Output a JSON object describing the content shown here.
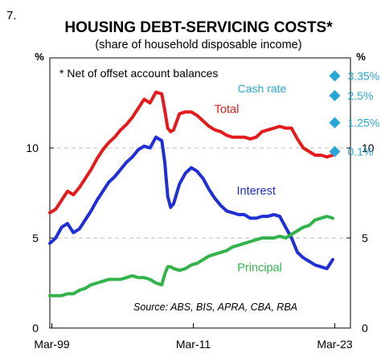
{
  "figure_number": "7.",
  "colors": {
    "total": "#e41a1c",
    "interest": "#1f2ed6",
    "principal": "#33b44a",
    "cash_rate": "#29a6d8",
    "gridline": "#bdbdbd"
  },
  "chart_data": {
    "type": "line",
    "title": "HOUSING DEBT-SERVICING COSTS*",
    "subtitle": "(share of household disposable income)",
    "ylabel_left": "%",
    "ylabel_right": "%",
    "ylim": [
      0,
      15
    ],
    "yticks": [
      0,
      5,
      10
    ],
    "gridlines": [
      5,
      10
    ],
    "xlim": [
      1999.0,
      2024.5
    ],
    "xticks": [
      {
        "x": 1999.17,
        "label": "Mar-99"
      },
      {
        "x": 2011.17,
        "label": "Mar-11"
      },
      {
        "x": 2023.17,
        "label": "Mar-23"
      }
    ],
    "note": "*   Net of offset account balances",
    "source": "Source: ABS, BIS, APRA, CBA, RBA",
    "series": [
      {
        "name": "Total",
        "key": "total",
        "x": [
          1999.0,
          1999.5,
          2000.0,
          2000.5,
          2001.0,
          2001.5,
          2002.0,
          2002.5,
          2003.0,
          2003.5,
          2004.0,
          2004.5,
          2005.0,
          2005.5,
          2006.0,
          2006.5,
          2007.0,
          2007.5,
          2008.0,
          2008.5,
          2008.75,
          2009.0,
          2009.25,
          2009.5,
          2010.0,
          2010.5,
          2011.0,
          2011.5,
          2012.0,
          2012.5,
          2013.0,
          2013.5,
          2014.0,
          2014.5,
          2015.0,
          2015.5,
          2016.0,
          2016.5,
          2017.0,
          2017.5,
          2018.0,
          2018.5,
          2019.0,
          2019.5,
          2020.0,
          2020.5,
          2021.0,
          2021.5,
          2022.0,
          2022.5,
          2023.0
        ],
        "values": [
          6.4,
          6.6,
          7.1,
          7.6,
          7.4,
          7.8,
          8.3,
          8.8,
          9.4,
          9.9,
          10.3,
          10.6,
          11.0,
          11.3,
          11.7,
          12.2,
          12.7,
          12.5,
          13.1,
          13.0,
          12.1,
          11.1,
          10.9,
          11.0,
          11.9,
          12.0,
          12.0,
          11.8,
          11.5,
          11.2,
          11.0,
          10.9,
          10.7,
          10.6,
          10.6,
          10.6,
          10.5,
          10.6,
          10.9,
          11.0,
          11.1,
          11.2,
          11.1,
          11.1,
          10.5,
          10.0,
          9.8,
          9.6,
          9.6,
          9.5,
          9.6
        ]
      },
      {
        "name": "Interest",
        "key": "interest",
        "x": [
          1999.0,
          1999.5,
          2000.0,
          2000.5,
          2001.0,
          2001.5,
          2002.0,
          2002.5,
          2003.0,
          2003.5,
          2004.0,
          2004.5,
          2005.0,
          2005.5,
          2006.0,
          2006.5,
          2007.0,
          2007.5,
          2008.0,
          2008.5,
          2008.75,
          2009.0,
          2009.25,
          2009.5,
          2010.0,
          2010.5,
          2011.0,
          2011.5,
          2012.0,
          2012.5,
          2013.0,
          2013.5,
          2014.0,
          2014.5,
          2015.0,
          2015.5,
          2016.0,
          2016.5,
          2017.0,
          2017.5,
          2018.0,
          2018.5,
          2019.0,
          2019.5,
          2020.0,
          2020.5,
          2021.0,
          2021.5,
          2022.0,
          2022.5,
          2023.0
        ],
        "values": [
          4.7,
          5.0,
          5.6,
          5.8,
          5.3,
          5.5,
          6.0,
          6.5,
          7.1,
          7.6,
          8.1,
          8.4,
          8.8,
          9.2,
          9.5,
          9.9,
          10.1,
          10.0,
          10.6,
          10.4,
          9.2,
          7.3,
          6.7,
          6.9,
          8.0,
          8.6,
          8.9,
          8.7,
          8.3,
          7.7,
          7.2,
          6.8,
          6.5,
          6.4,
          6.3,
          6.3,
          6.1,
          6.1,
          6.2,
          6.2,
          6.3,
          6.2,
          5.6,
          5.0,
          4.2,
          3.9,
          3.7,
          3.5,
          3.4,
          3.3,
          3.8
        ]
      },
      {
        "name": "Principal",
        "key": "principal",
        "x": [
          1999.0,
          1999.5,
          2000.0,
          2000.5,
          2001.0,
          2001.5,
          2002.0,
          2002.5,
          2003.0,
          2003.5,
          2004.0,
          2004.5,
          2005.0,
          2005.5,
          2006.0,
          2006.5,
          2007.0,
          2007.5,
          2008.0,
          2008.5,
          2008.75,
          2009.0,
          2009.25,
          2009.5,
          2010.0,
          2010.5,
          2011.0,
          2011.5,
          2012.0,
          2012.5,
          2013.0,
          2013.5,
          2014.0,
          2014.5,
          2015.0,
          2015.5,
          2016.0,
          2016.5,
          2017.0,
          2017.5,
          2018.0,
          2018.5,
          2019.0,
          2019.5,
          2020.0,
          2020.5,
          2021.0,
          2021.5,
          2022.0,
          2022.5,
          2023.0
        ],
        "values": [
          1.8,
          1.8,
          1.8,
          1.9,
          1.9,
          2.1,
          2.2,
          2.4,
          2.5,
          2.6,
          2.7,
          2.7,
          2.7,
          2.8,
          2.9,
          2.8,
          2.8,
          2.7,
          2.5,
          2.4,
          3.0,
          3.4,
          3.4,
          3.3,
          3.2,
          3.3,
          3.5,
          3.6,
          3.8,
          4.0,
          4.1,
          4.2,
          4.3,
          4.5,
          4.6,
          4.7,
          4.8,
          4.9,
          5.0,
          5.0,
          5.0,
          5.1,
          5.0,
          5.2,
          5.4,
          5.6,
          5.7,
          6.0,
          6.1,
          6.2,
          6.1
        ]
      }
    ],
    "series_labels": [
      {
        "key": "total",
        "text": "Total",
        "x": 2014.0,
        "y": 11.95
      },
      {
        "key": "interest",
        "text": "Interest",
        "x": 2016.5,
        "y": 7.4
      },
      {
        "key": "principal",
        "text": "Principal",
        "x": 2016.8,
        "y": 3.15
      }
    ],
    "cash_rate_label": "Cash rate",
    "cash_rate_label_pos": {
      "x": 2017.0,
      "y": 13.3
    },
    "cash_rate_markers": [
      {
        "label": "3.35%",
        "x": 2023.17,
        "y": 14.0
      },
      {
        "label": "2.5%",
        "x": 2023.17,
        "y": 12.9
      },
      {
        "label": "1.25%",
        "x": 2023.17,
        "y": 11.4
      },
      {
        "label": "0.1%",
        "x": 2023.17,
        "y": 9.8
      }
    ]
  }
}
